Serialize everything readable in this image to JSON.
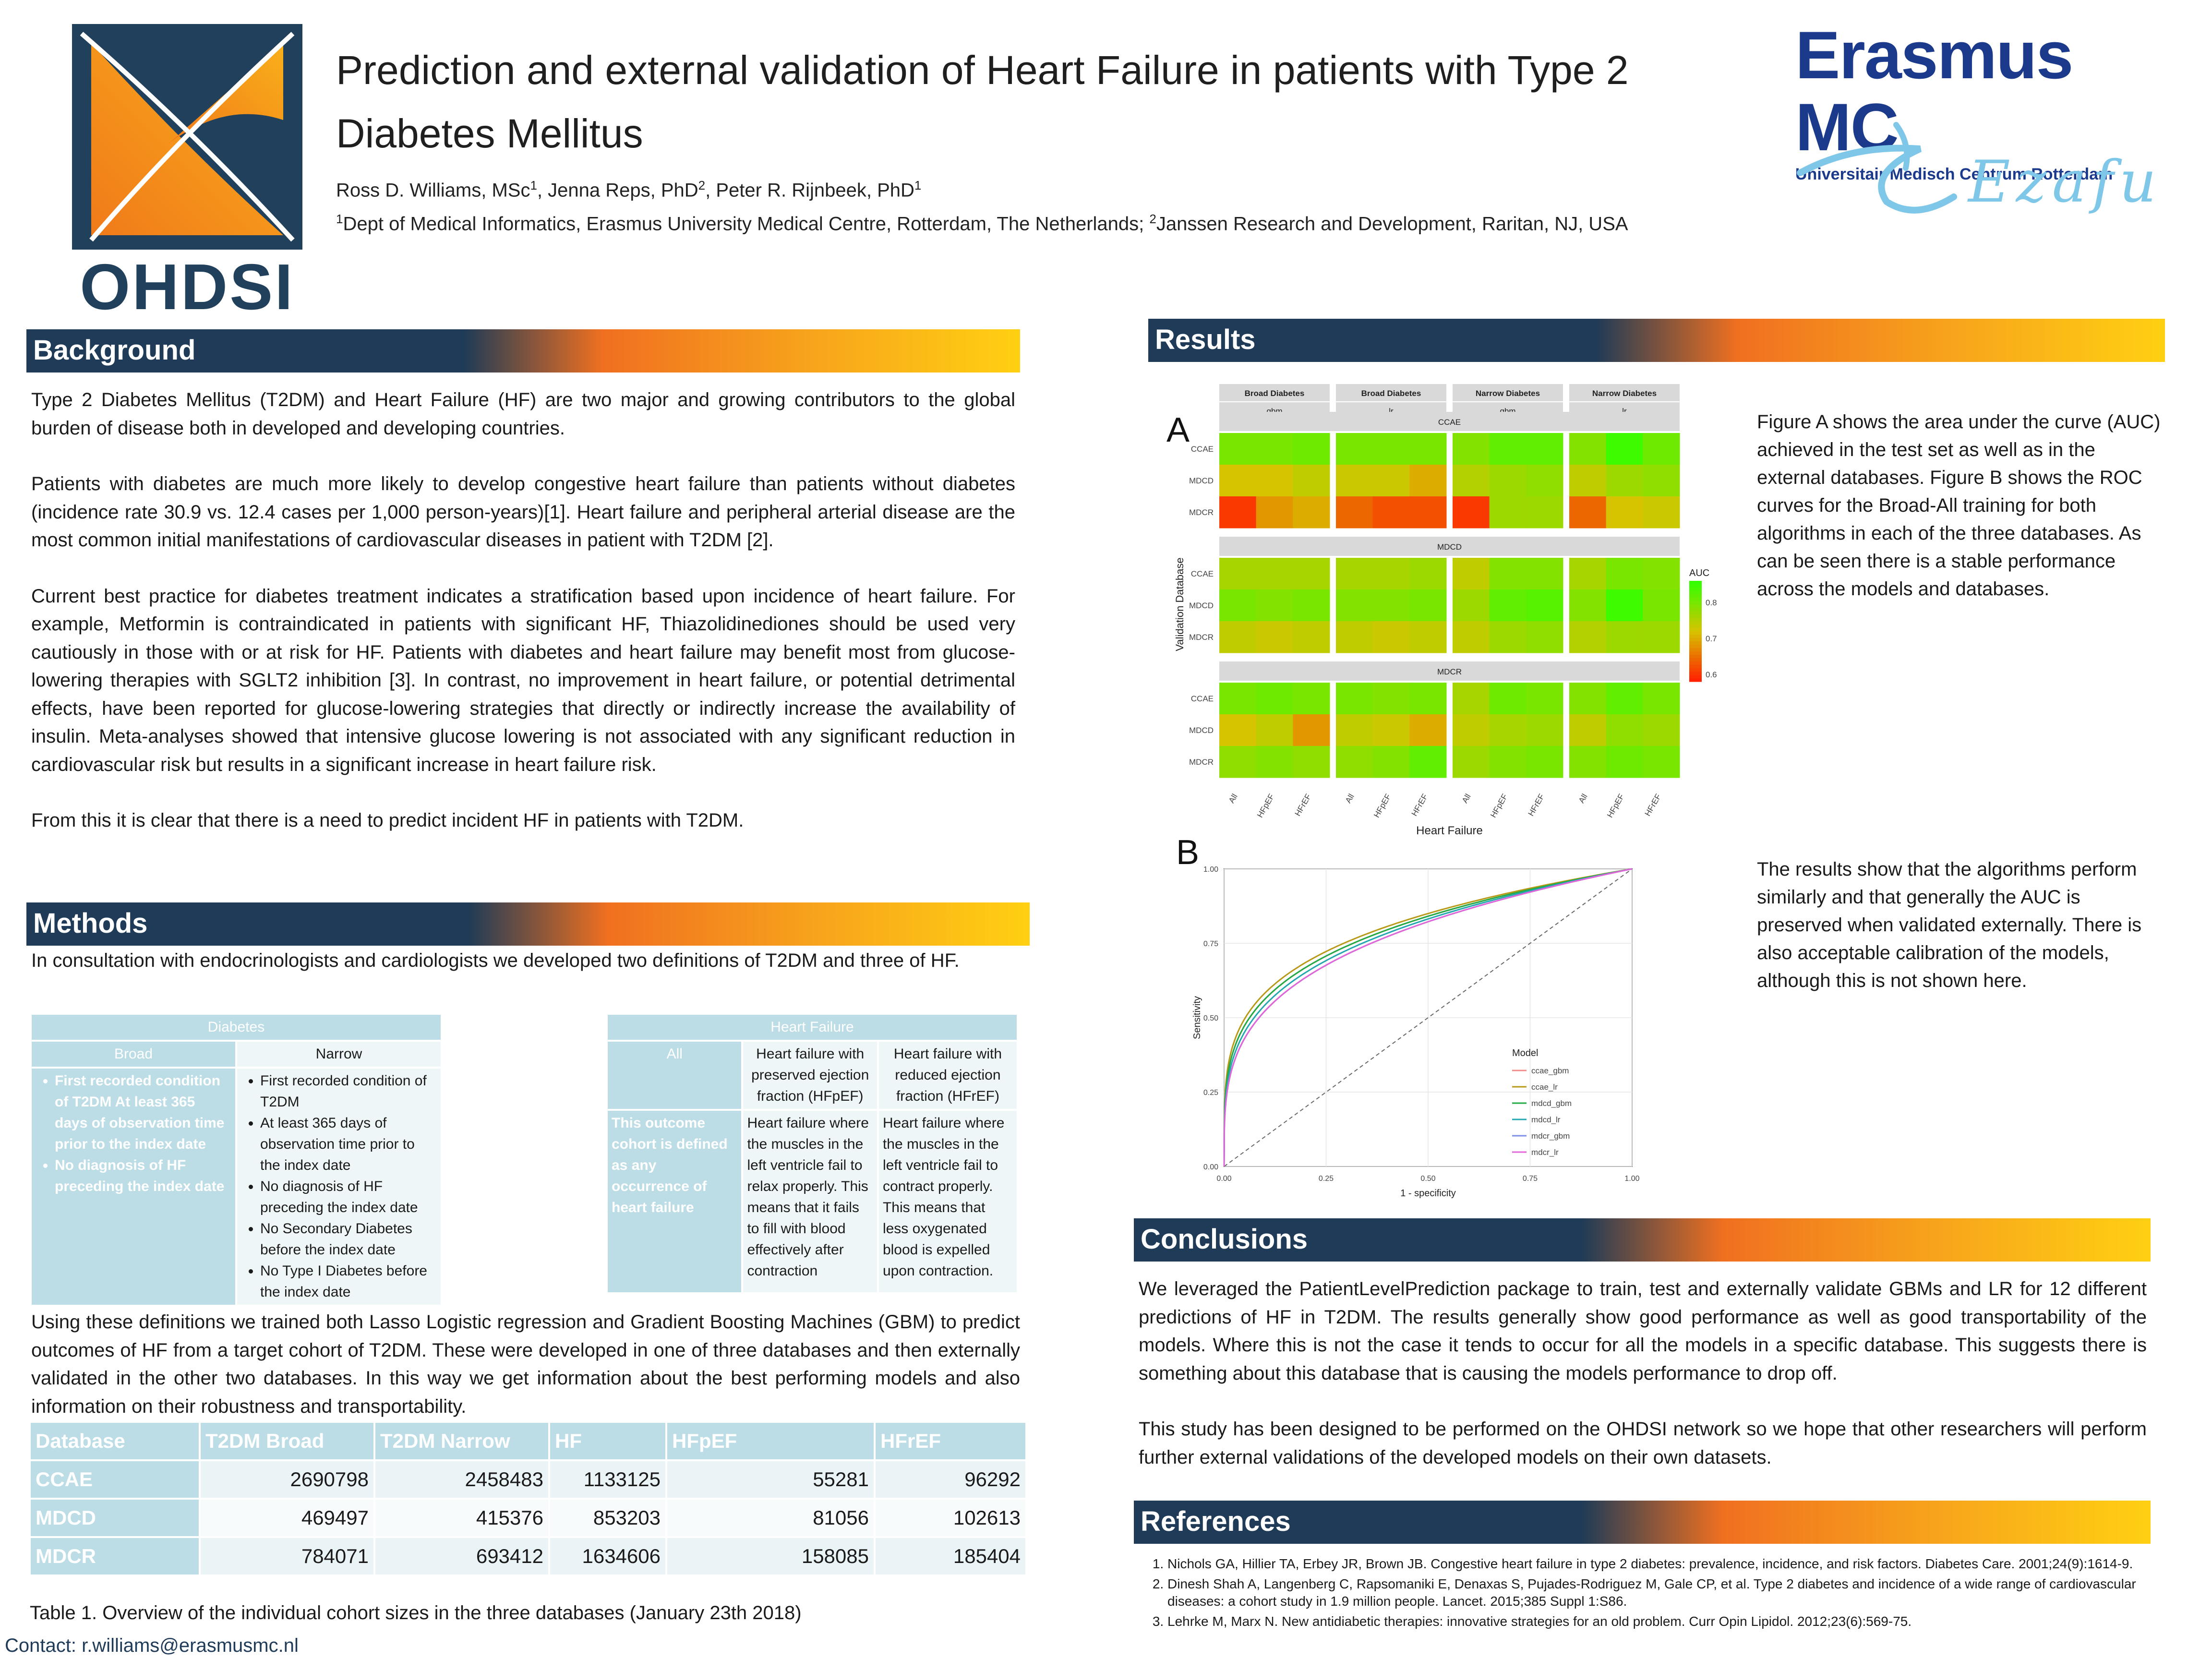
{
  "header": {
    "logo_text": "OHDSI",
    "title": "Prediction and external validation of Heart Failure in patients with Type 2 Diabetes Mellitus",
    "authors": [
      {
        "name": "Ross D. Williams, MSc",
        "sup": "1"
      },
      {
        "name": "Jenna Reps, PhD",
        "sup": "2"
      },
      {
        "name": "Peter R. Rijnbeek, PhD",
        "sup": "1"
      }
    ],
    "affiliation_1_sup": "1",
    "affiliation_1": "Dept of Medical Informatics, Erasmus University Medical Centre, Rotterdam, The Netherlands;",
    "affiliation_2_sup": "2",
    "affiliation_2": "Janssen Research and Development, Raritan, NJ, USA",
    "erasmus_name": "Erasmus MC",
    "erasmus_sub": "Universitair Medisch Centrum Rotterdam",
    "erasmus_script": "Ezafu"
  },
  "background": {
    "heading": "Background",
    "p1": "Type 2 Diabetes Mellitus  (T2DM) and Heart Failure (HF) are two major and growing contributors to the global burden of disease both in developed and developing countries.",
    "p2": "Patients with diabetes are much more likely to develop congestive heart failure than patients without diabetes (incidence rate 30.9 vs. 12.4 cases per 1,000 person-years)[1]. Heart failure and peripheral arterial disease are the most common initial manifestations of cardiovascular diseases in patient with T2DM [2].",
    "p3": "Current best practice for diabetes treatment indicates a stratification based upon incidence of heart failure. For example, Metformin is contraindicated in patients with significant HF, Thiazolidinediones should be used very cautiously in those with or at risk for HF. Patients with diabetes and heart failure may benefit most from glucose-lowering therapies with SGLT2 inhibition [3]. In contrast, no improvement in heart failure, or potential detrimental effects, have been reported for glucose-lowering strategies that directly or indirectly increase the availability of insulin. Meta-analyses showed that intensive glucose lowering is not associated with any significant reduction in cardiovascular risk but results in a significant increase in heart failure risk.",
    "p4": "From this it is clear that there is a need to predict incident HF in patients with T2DM."
  },
  "methods": {
    "heading": "Methods",
    "p1": "In consultation with endocrinologists and cardiologists we developed two definitions of T2DM and three of HF.",
    "diabetes_table": {
      "title": "Diabetes",
      "col1": "Broad",
      "col2": "Narrow",
      "broad_items": [
        "First recorded condition of T2DM At least 365 days of observation time prior to the index date",
        "No diagnosis of HF preceding the index date"
      ],
      "narrow_items": [
        "First recorded condition of T2DM",
        "At least 365 days of observation time prior to the index date",
        "No diagnosis of HF preceding the index date",
        "No Secondary Diabetes before the index date",
        "No Type I Diabetes before the index date"
      ]
    },
    "hf_table": {
      "title": "Heart Failure",
      "col1": "All",
      "col2": "Heart failure with preserved ejection fraction (HFpEF)",
      "col3": "Heart failure with reduced ejection fraction (HFrEF)",
      "all_def": "This outcome cohort is defined as any occurrence of heart failure",
      "hfpef_def": "Heart failure where the muscles in the left ventricle fail to relax properly.  This means that it fails to fill with blood effectively after contraction",
      "hfref_def": "Heart failure where the muscles in the left ventricle fail to contract properly.  This means that less oxygenated blood is expelled  upon contraction."
    },
    "p2": "Using these definitions we trained both Lasso Logistic regression and Gradient Boosting Machines (GBM) to predict outcomes of HF from a target cohort of T2DM. These were developed in one of three databases and then externally validated in the other two databases. In this way we get information about the best performing models and also information on their robustness and transportability.",
    "counts_table": {
      "headers": [
        "Database",
        "T2DM Broad",
        "T2DM Narrow",
        "HF",
        "HFpEF",
        "HFrEF"
      ],
      "rows": [
        [
          "CCAE",
          "2690798",
          "2458483",
          "1133125",
          "55281",
          "96292"
        ],
        [
          "MDCD",
          "469497",
          "415376",
          "853203",
          "81056",
          "102613"
        ],
        [
          "MDCR",
          "784071",
          "693412",
          "1634606",
          "158085",
          "185404"
        ]
      ]
    },
    "caption": "Table 1. Overview of the individual cohort sizes in the three databases (January 23th 2018)"
  },
  "contact": "Contact:  r.williams@erasmusmc.nl",
  "results": {
    "heading": "Results",
    "text1": "Figure A shows the area under the curve (AUC) achieved in the test set as well as in the external databases. Figure B shows the ROC curves for the Broad-All training for both algorithms in each of the three databases. As can be seen there is a stable performance across the models and databases.",
    "text2": "The results show that the algorithms perform similarly and that generally the AUC is preserved when validated externally. There is also acceptable calibration of the models, although this is not shown here."
  },
  "chart_data": [
    {
      "type": "heatmap",
      "panel_label": "A",
      "facet_columns": [
        {
          "name": "Broad Diabetes",
          "model": "gbm"
        },
        {
          "name": "Broad Diabetes",
          "model": "lr"
        },
        {
          "name": "Narrow Diabetes",
          "model": "gbm"
        },
        {
          "name": "Narrow Diabetes",
          "model": "lr"
        }
      ],
      "facet_rows": [
        "CCAE",
        "MDCD",
        "MDCR"
      ],
      "y_categories": [
        "CCAE",
        "MDCD",
        "MDCR"
      ],
      "x_categories": [
        "All",
        "HFpEF",
        "HFrEF"
      ],
      "xlabel": "Heart Failure",
      "ylabel": "Validation Database",
      "legend_title": "AUC",
      "legend_ticks": [
        "0.8",
        "0.7",
        "0.6"
      ],
      "color_range": [
        0.58,
        0.86
      ],
      "color_low": "#ff2200",
      "color_high": "#33ff00",
      "values": [
        [
          [
            0.8,
            0.8,
            0.81,
            0.8,
            0.8,
            0.8,
            0.79,
            0.82,
            0.82,
            0.79,
            0.85,
            0.81
          ],
          [
            0.72,
            0.72,
            0.74,
            0.73,
            0.73,
            0.7,
            0.75,
            0.77,
            0.78,
            0.74,
            0.77,
            0.78
          ],
          [
            0.6,
            0.68,
            0.7,
            0.64,
            0.62,
            0.62,
            0.6,
            0.77,
            0.77,
            0.64,
            0.72,
            0.73
          ]
        ],
        [
          [
            0.76,
            0.76,
            0.76,
            0.76,
            0.76,
            0.77,
            0.74,
            0.79,
            0.79,
            0.76,
            0.8,
            0.79
          ],
          [
            0.8,
            0.79,
            0.8,
            0.79,
            0.79,
            0.8,
            0.77,
            0.82,
            0.83,
            0.79,
            0.85,
            0.8
          ],
          [
            0.74,
            0.73,
            0.74,
            0.74,
            0.73,
            0.74,
            0.74,
            0.77,
            0.78,
            0.75,
            0.77,
            0.77
          ]
        ],
        [
          [
            0.8,
            0.81,
            0.8,
            0.8,
            0.79,
            0.8,
            0.76,
            0.81,
            0.8,
            0.79,
            0.82,
            0.8
          ],
          [
            0.72,
            0.74,
            0.68,
            0.74,
            0.73,
            0.7,
            0.74,
            0.76,
            0.77,
            0.74,
            0.78,
            0.77
          ],
          [
            0.78,
            0.79,
            0.78,
            0.78,
            0.79,
            0.82,
            0.77,
            0.79,
            0.8,
            0.79,
            0.81,
            0.8
          ]
        ]
      ]
    },
    {
      "type": "line",
      "panel_label": "B",
      "xlabel": "1 - specificity",
      "ylabel": "Sensitivity",
      "x_ticks": [
        "0.00",
        "0.25",
        "0.50",
        "0.75",
        "1.00"
      ],
      "y_ticks": [
        "0.00",
        "0.25",
        "0.50",
        "0.75",
        "1.00"
      ],
      "xlim": [
        0,
        1
      ],
      "ylim": [
        0,
        1
      ],
      "legend_title": "Model",
      "series": [
        {
          "name": "ccae_gbm",
          "color": "#f28a8a",
          "auc": 0.8
        },
        {
          "name": "ccae_lr",
          "color": "#b89a18",
          "auc": 0.81
        },
        {
          "name": "mdcd_gbm",
          "color": "#22aa44",
          "auc": 0.8
        },
        {
          "name": "mdcd_lr",
          "color": "#22a7b0",
          "auc": 0.79
        },
        {
          "name": "mdcr_gbm",
          "color": "#7f8fe6",
          "auc": 0.78
        },
        {
          "name": "mdcr_lr",
          "color": "#e065d8",
          "auc": 0.78
        }
      ]
    }
  ],
  "conclusions": {
    "heading": "Conclusions",
    "p1": "We leveraged the PatientLevelPrediction package to train, test and externally validate GBMs and LR for 12 different predictions of HF in T2DM. The results generally show good performance as well as good transportability of the models. Where this is not the case it tends to occur for all the models in a specific database. This suggests there is something about this database that is causing the models performance to drop off.",
    "p2": "This study has been designed to be performed on the OHDSI network so we hope that other researchers will perform further external validations of the developed models on their own datasets."
  },
  "references": {
    "heading": "References",
    "items": [
      "Nichols GA, Hillier TA, Erbey JR, Brown JB. Congestive heart failure in type 2 diabetes: prevalence, incidence, and risk factors. Diabetes Care. 2001;24(9):1614-9.",
      "Dinesh Shah A, Langenberg C, Rapsomaniki E, Denaxas S, Pujades-Rodriguez M, Gale CP, et al. Type 2 diabetes and incidence of a wide range of cardiovascular  diseases: a cohort study in 1.9 million people. Lancet. 2015;385 Suppl 1:S86.",
      "Lehrke M, Marx N. New antidiabetic therapies: innovative strategies for an old problem. Curr Opin Lipidol. 2012;23(6):569-75."
    ]
  }
}
